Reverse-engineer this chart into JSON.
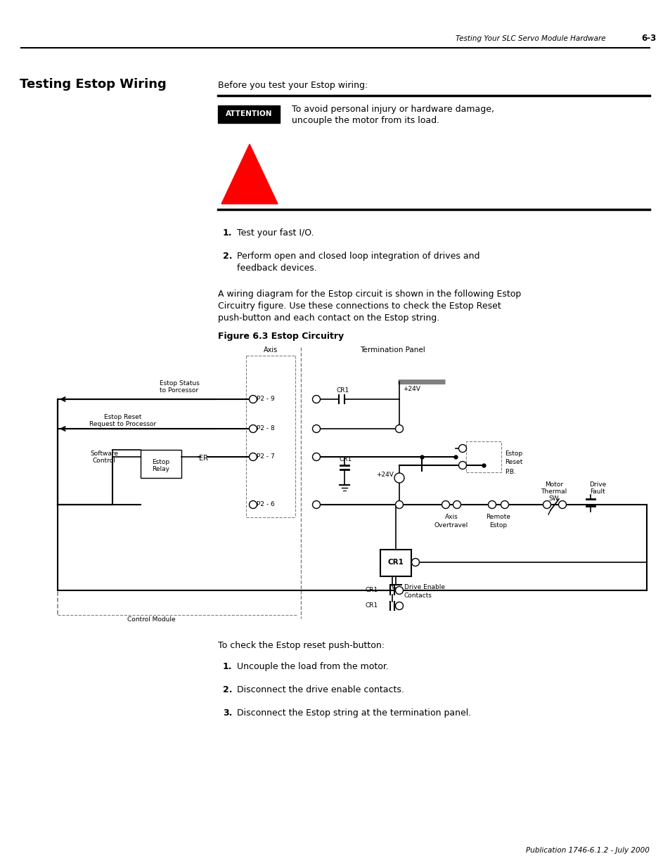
{
  "page_header_text": "Testing Your SLC Servo Module Hardware",
  "page_number": "6-3",
  "section_title": "Testing Estop Wiring",
  "intro_text": "Before you test your Estop wiring:",
  "attention_label": "ATTENTION",
  "attn_line1": "To avoid personal injury or hardware damage,",
  "attn_line2": "uncouple the motor from its load.",
  "step1": "Test your fast I/O.",
  "step2_line1": "Perform open and closed loop integration of drives and",
  "step2_line2": "feedback devices.",
  "para_line1": "A wiring diagram for the Estop circuit is shown in the following Estop",
  "para_line2": "Circuitry figure. Use these connections to check the Estop Reset",
  "para_line3": "push-button and each contact on the Estop string.",
  "figure_caption": "Figure 6.3 Estop Circuitry",
  "check_intro": "To check the Estop reset push-button:",
  "check_step1": "Uncouple the load from the motor.",
  "check_step2": "Disconnect the drive enable contacts.",
  "check_step3": "Disconnect the Estop string at the termination panel.",
  "footer_text": "Publication 1746-6.1.2 - July 2000",
  "bg_color": "#ffffff",
  "triangle_color": "#ff0000"
}
